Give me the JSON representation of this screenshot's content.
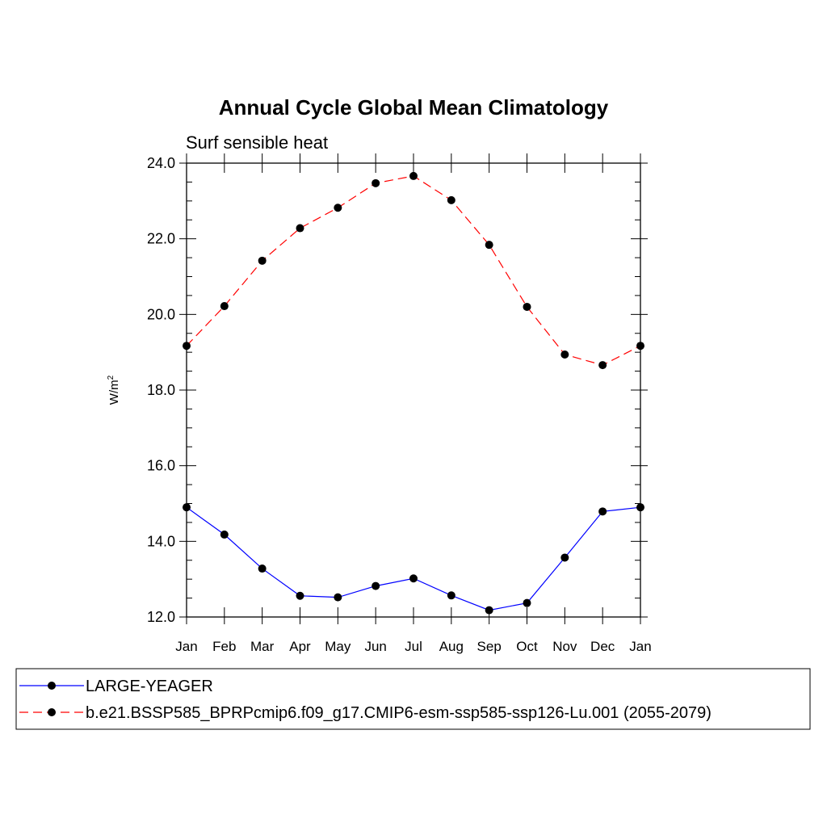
{
  "chart_data": {
    "type": "line",
    "title": "Annual Cycle Global Mean Climatology",
    "subtitle": "Surf sensible heat",
    "xlabel": "",
    "ylabel_base": "W/m",
    "ylabel_sup": "2",
    "categories": [
      "Jan",
      "Feb",
      "Mar",
      "Apr",
      "May",
      "Jun",
      "Jul",
      "Aug",
      "Sep",
      "Oct",
      "Nov",
      "Dec",
      "Jan"
    ],
    "ylim": [
      12.0,
      24.0
    ],
    "yticks": [
      "12.0",
      "14.0",
      "16.0",
      "18.0",
      "20.0",
      "22.0",
      "24.0"
    ],
    "grid": false,
    "legend_position": "bottom",
    "series": [
      {
        "name": "LARGE-YEAGER",
        "color": "#0000ff",
        "line_style": "solid",
        "marker": "filled-circle",
        "values": [
          14.9,
          14.18,
          13.28,
          12.56,
          12.52,
          12.82,
          13.02,
          12.57,
          12.18,
          12.37,
          13.57,
          14.79,
          14.9
        ]
      },
      {
        "name": "b.e21.BSSP585_BPRPcmip6.f09_g17.CMIP6-esm-ssp585-ssp126-Lu.001 (2055-2079)",
        "color": "#ff0000",
        "line_style": "dashed",
        "marker": "filled-circle",
        "values": [
          19.17,
          20.22,
          21.42,
          22.28,
          22.82,
          23.47,
          23.66,
          23.02,
          21.84,
          20.2,
          18.94,
          18.66,
          19.17
        ]
      }
    ]
  }
}
